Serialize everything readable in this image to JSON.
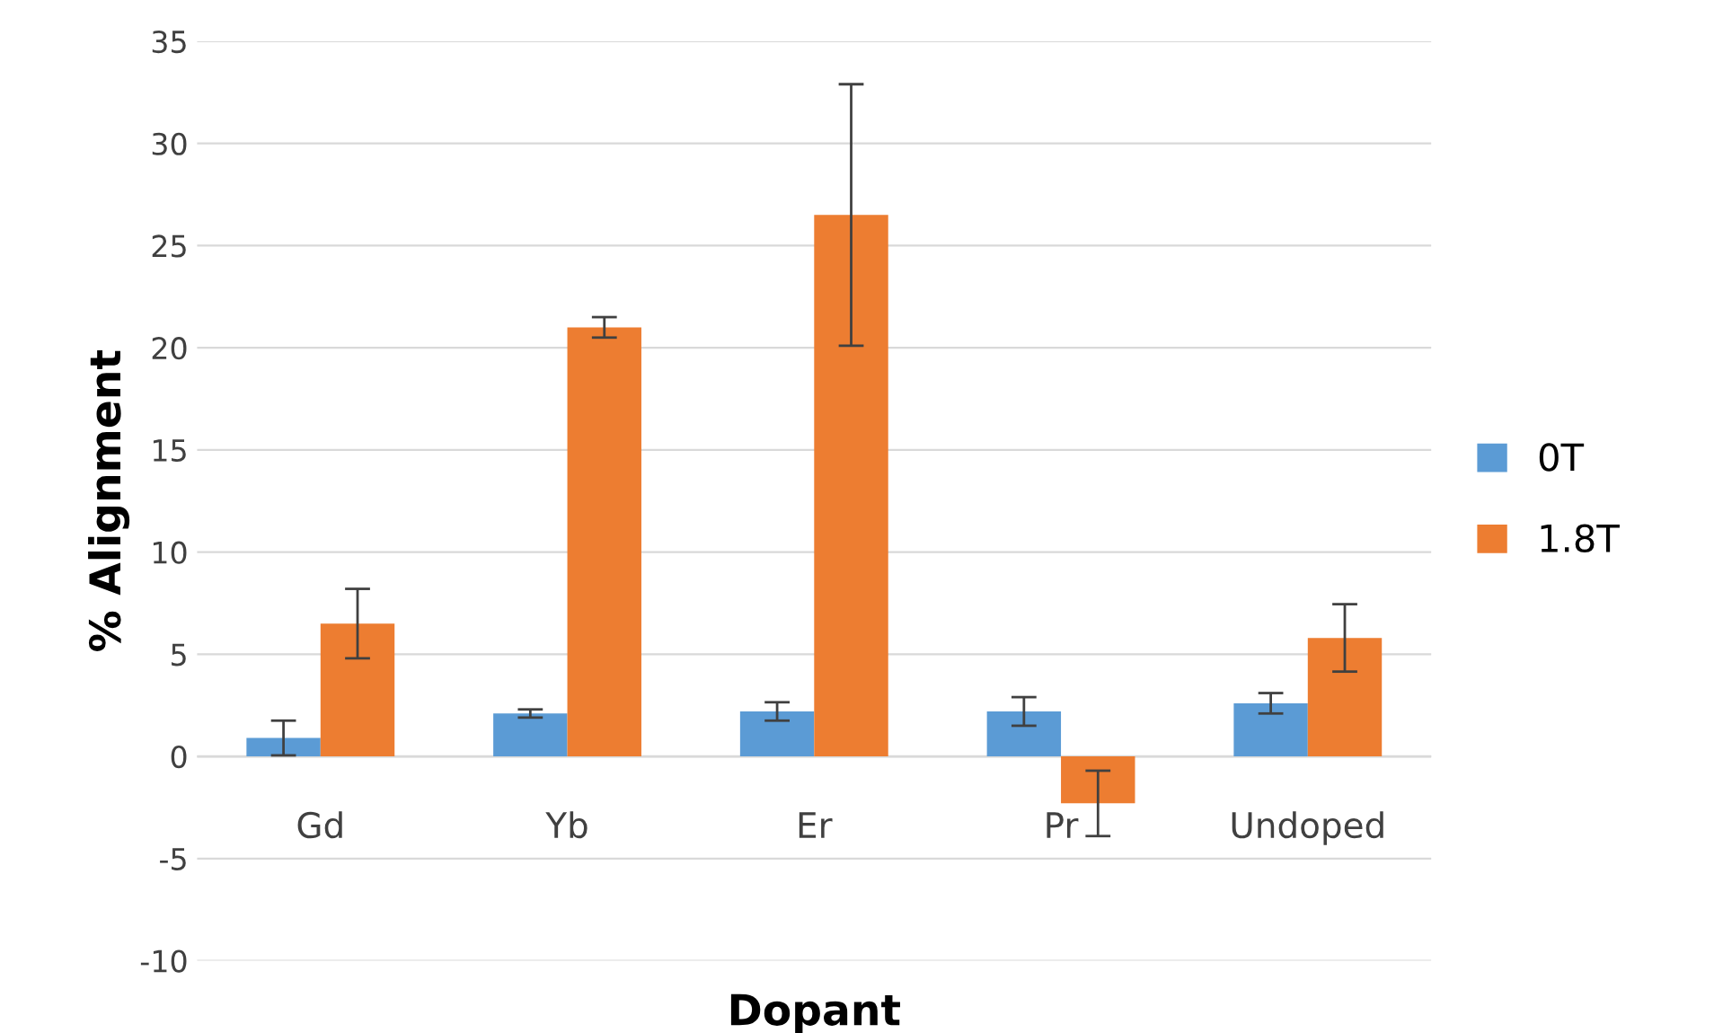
{
  "chart_data": {
    "type": "bar",
    "xlabel": "Dopant",
    "ylabel": "% Alignment",
    "categories": [
      "Gd",
      "Yb",
      "Er",
      "Pr",
      "Undoped"
    ],
    "series": [
      {
        "name": "0T",
        "color": "#5b9bd5",
        "values": [
          0.9,
          2.1,
          2.2,
          2.2,
          2.6
        ],
        "errors": [
          0.85,
          0.2,
          0.45,
          0.7,
          0.5
        ]
      },
      {
        "name": "1.8T",
        "color": "#ed7d31",
        "values": [
          6.5,
          21.0,
          26.5,
          -2.3,
          5.8
        ],
        "errors": [
          1.7,
          0.5,
          6.4,
          1.6,
          1.65
        ]
      }
    ],
    "ylim": [
      -10,
      35
    ],
    "yticks": [
      -10,
      -5,
      0,
      5,
      10,
      15,
      20,
      25,
      30,
      35
    ],
    "grid": "y",
    "legend": "right"
  }
}
